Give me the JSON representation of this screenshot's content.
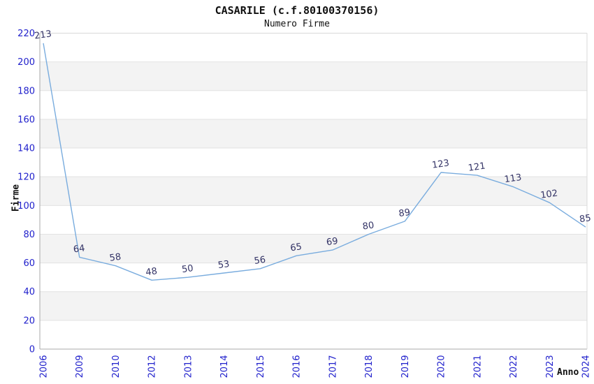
{
  "chart_data": {
    "type": "line",
    "title": "CASARILE (c.f.80100370156)",
    "subtitle": "Numero Firme",
    "xlabel": "Anno",
    "ylabel": "Firme",
    "x": [
      "2006",
      "2009",
      "2010",
      "2012",
      "2013",
      "2014",
      "2015",
      "2016",
      "2017",
      "2018",
      "2019",
      "2020",
      "2021",
      "2022",
      "2023",
      "2024"
    ],
    "values": [
      213,
      64,
      58,
      48,
      50,
      53,
      56,
      65,
      69,
      80,
      89,
      123,
      121,
      113,
      102,
      85
    ],
    "ylim": [
      0,
      220
    ],
    "ytick_step": 20,
    "grid": "horizontal-alternating-bands",
    "legend": "none",
    "data_labels": true
  },
  "colors": {
    "line": "#79acde",
    "data_label": "#333366",
    "tick_label": "#2121cc",
    "band_gray": "#f3f3f3",
    "gridline": "#e2e2e2",
    "border_dark": "#a8a8a8",
    "border_light": "#d8d8d8",
    "text": "#111111"
  }
}
